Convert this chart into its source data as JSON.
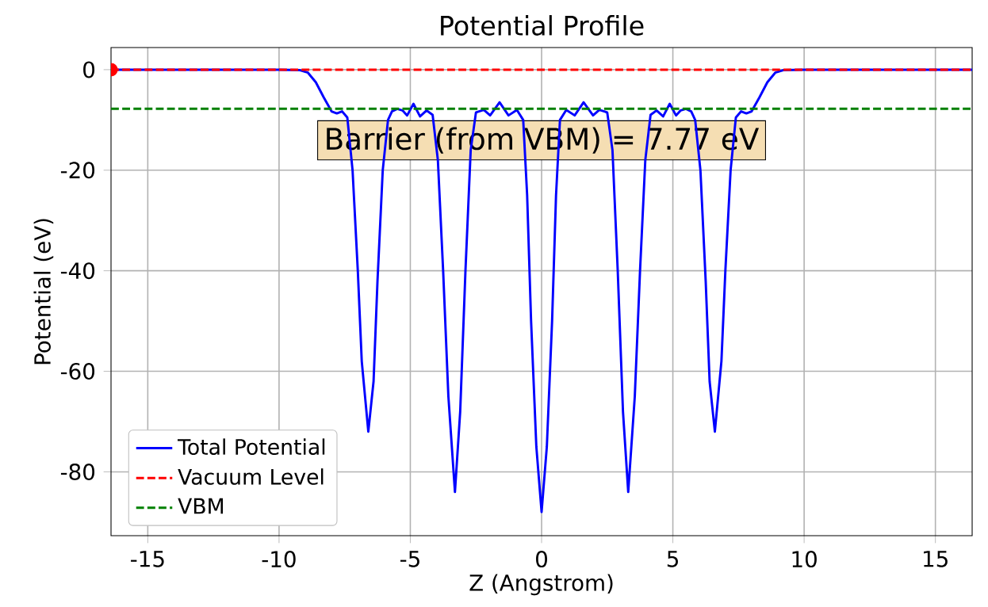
{
  "chart_data": {
    "type": "line",
    "title": "Potential Profile",
    "xlabel": "Z (Angstrom)",
    "ylabel": "Potential (eV)",
    "xlim": [
      -16.4,
      16.4
    ],
    "ylim": [
      -92.7,
      4.4
    ],
    "xticks": [
      -15,
      -10,
      -5,
      0,
      5,
      10,
      15
    ],
    "yticks": [
      0,
      -20,
      -40,
      -60,
      -80
    ],
    "grid": true,
    "legend": "bottom left",
    "annotations": [
      "Barrier (from VBM) = 7.77 eV"
    ],
    "ref_lines": [
      {
        "axis": "y",
        "value": 0,
        "label": "Vacuum Level",
        "color": "#ff0000",
        "line_style": "dashed"
      },
      {
        "axis": "y",
        "value": -7.77,
        "label": "VBM",
        "color": "#008000",
        "line_style": "dashed"
      }
    ],
    "series": [
      {
        "name": "Total Potential",
        "color": "#0000ff",
        "line_style": "solid",
        "x": [
          -16.4,
          -10,
          -9.2,
          -8.9,
          -8.6,
          -8.3,
          -8.0,
          -7.8,
          -7.6,
          -7.4,
          -7.2,
          -7.0,
          -6.85,
          -6.6,
          -6.4,
          -6.25,
          -6.05,
          -5.85,
          -5.7,
          -5.5,
          -5.3,
          -5.12,
          -4.88,
          -4.63,
          -4.38,
          -4.15,
          -3.95,
          -3.75,
          -3.55,
          -3.3,
          -3.1,
          -2.9,
          -2.7,
          -2.5,
          -2.2,
          -1.96,
          -1.6,
          -1.26,
          -0.94,
          -0.7,
          -0.55,
          -0.4,
          -0.2,
          0,
          0.2,
          0.4,
          0.55,
          0.7,
          0.94,
          1.26,
          1.6,
          1.96,
          2.2,
          2.5,
          2.7,
          2.9,
          3.1,
          3.3,
          3.55,
          3.75,
          3.95,
          4.15,
          4.38,
          4.63,
          4.88,
          5.12,
          5.3,
          5.5,
          5.7,
          5.85,
          6.05,
          6.25,
          6.4,
          6.6,
          6.85,
          7.0,
          7.2,
          7.4,
          7.6,
          7.8,
          8.0,
          8.3,
          8.6,
          8.9,
          9.2,
          10,
          16.4
        ],
        "values": [
          0,
          0,
          -0.1,
          -0.6,
          -2.5,
          -5.5,
          -8.3,
          -8.7,
          -8.3,
          -9.5,
          -20,
          -40,
          -58,
          -72,
          -62,
          -42,
          -20,
          -10,
          -8.3,
          -7.8,
          -8.1,
          -9.1,
          -6.8,
          -9.3,
          -8.1,
          -9,
          -18,
          -40,
          -65,
          -84,
          -68,
          -40,
          -16,
          -8.5,
          -8,
          -9.1,
          -6.5,
          -9.1,
          -8,
          -10,
          -25,
          -50,
          -75,
          -88,
          -75,
          -50,
          -25,
          -10,
          -8,
          -9.1,
          -6.5,
          -9.1,
          -8,
          -8.5,
          -16,
          -40,
          -68,
          -84,
          -65,
          -40,
          -18,
          -9,
          -8.1,
          -9.3,
          -6.8,
          -9.1,
          -8.1,
          -7.8,
          -8.3,
          -10,
          -20,
          -42,
          -62,
          -72,
          -58,
          -40,
          -20,
          -9.5,
          -8.3,
          -8.7,
          -8.3,
          -5.5,
          -2.5,
          -0.6,
          -0.1,
          0,
          0
        ]
      },
      {
        "type": "scatter",
        "color": "#ff0000",
        "marker": "circle",
        "x": [
          -16.4
        ],
        "values": [
          0
        ]
      }
    ]
  }
}
